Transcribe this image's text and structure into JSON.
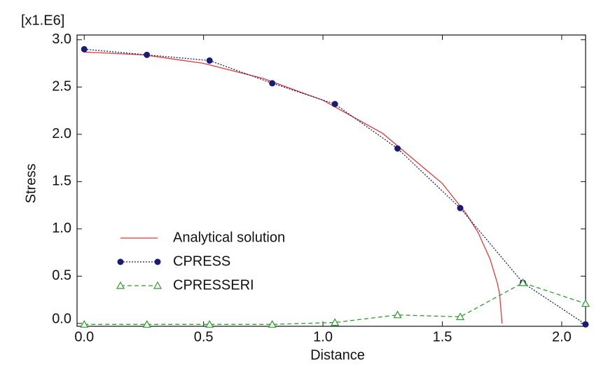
{
  "chart_data": {
    "type": "line",
    "y_multiplier_label": "[x1.E6]",
    "xlabel": "Distance",
    "ylabel": "Stress",
    "xlim": [
      -0.03,
      2.1
    ],
    "ylim": [
      -0.03,
      3.05
    ],
    "xticks": [
      {
        "value": 0,
        "label": "0.0"
      },
      0.5,
      {
        "value": 1,
        "label": "1.0"
      },
      1.5,
      {
        "value": 2,
        "label": "2.0"
      }
    ],
    "yticks": [
      {
        "value": 0,
        "label": "0.0"
      },
      0.5,
      {
        "value": 1,
        "label": "1.0"
      },
      1.5,
      {
        "value": 2,
        "label": "2.0"
      },
      2.5,
      {
        "value": 3,
        "label": "3.0"
      }
    ],
    "legend": "lower left",
    "series": [
      {
        "name": "Analytical solution",
        "color": "#e03a3a",
        "dash": "solid",
        "marker": "none",
        "x": [
          0,
          0.25,
          0.5,
          0.75,
          1.0,
          1.25,
          1.5,
          1.6,
          1.65,
          1.7,
          1.73,
          1.74,
          1.75
        ],
        "values": [
          2.87,
          2.84,
          2.75,
          2.59,
          2.36,
          2.01,
          1.48,
          1.16,
          0.96,
          0.68,
          0.43,
          0.31,
          0
        ]
      },
      {
        "name": "CPRESS",
        "color": "#1b1b72",
        "dash": "dotted",
        "marker": "circle",
        "x": [
          0,
          0.2625,
          0.525,
          0.7875,
          1.05,
          1.3125,
          1.575,
          1.8375,
          2.1
        ],
        "values": [
          2.9,
          2.84,
          2.78,
          2.54,
          2.32,
          1.85,
          1.22,
          0.43,
          -0.01
        ]
      },
      {
        "name": "CPRESSERI",
        "color": "#2e9a2e",
        "dash": "dashed",
        "marker": "triangle",
        "x": [
          0,
          0.2625,
          0.525,
          0.7875,
          1.05,
          1.3125,
          1.575,
          1.8375,
          2.1
        ],
        "values": [
          -0.01,
          -0.01,
          -0.01,
          -0.01,
          0.01,
          0.09,
          0.07,
          0.43,
          0.21
        ]
      }
    ]
  }
}
